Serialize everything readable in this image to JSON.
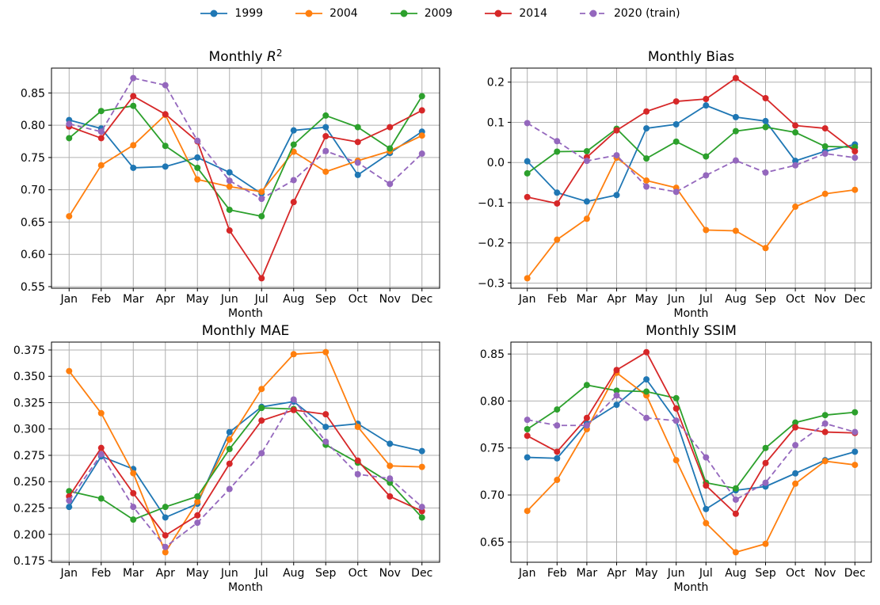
{
  "figure": {
    "background": "#ffffff"
  },
  "legend": {
    "items": [
      {
        "label": "1999",
        "color": "#1f77b4",
        "dashed": false
      },
      {
        "label": "2004",
        "color": "#ff7f0e",
        "dashed": false
      },
      {
        "label": "2009",
        "color": "#2ca02c",
        "dashed": false
      },
      {
        "label": "2014",
        "color": "#d62728",
        "dashed": false
      },
      {
        "label": "2020 (train)",
        "color": "#9467bd",
        "dashed": true
      }
    ]
  },
  "months": [
    "Jan",
    "Feb",
    "Mar",
    "Apr",
    "May",
    "Jun",
    "Jul",
    "Aug",
    "Sep",
    "Oct",
    "Nov",
    "Dec"
  ],
  "chart_data": [
    {
      "type": "line",
      "title": "Monthly R²",
      "xlabel": "Month",
      "grid": true,
      "categories": [
        "Jan",
        "Feb",
        "Mar",
        "Apr",
        "May",
        "Jun",
        "Jul",
        "Aug",
        "Sep",
        "Oct",
        "Nov",
        "Dec"
      ],
      "ylim": [
        0.5475,
        0.8885
      ],
      "yticks": [
        0.55,
        0.6,
        0.65,
        0.7,
        0.75,
        0.8,
        0.85
      ],
      "ytick_decimals": 2,
      "series": [
        {
          "name": "1999",
          "values": [
            0.808,
            0.795,
            0.734,
            0.736,
            0.75,
            0.727,
            0.694,
            0.792,
            0.797,
            0.723,
            0.757,
            0.79
          ]
        },
        {
          "name": "2004",
          "values": [
            0.659,
            0.738,
            0.769,
            0.816,
            0.716,
            0.705,
            0.697,
            0.759,
            0.728,
            0.745,
            0.76,
            0.784
          ]
        },
        {
          "name": "2009",
          "values": [
            0.78,
            0.822,
            0.83,
            0.768,
            0.734,
            0.669,
            0.659,
            0.77,
            0.815,
            0.797,
            0.764,
            0.845
          ]
        },
        {
          "name": "2014",
          "values": [
            0.798,
            0.78,
            0.845,
            0.817,
            0.775,
            0.637,
            0.563,
            0.681,
            0.783,
            0.774,
            0.797,
            0.823
          ]
        },
        {
          "name": "2020 (train)",
          "values": [
            0.802,
            0.79,
            0.873,
            0.862,
            0.776,
            0.714,
            0.686,
            0.715,
            0.76,
            0.742,
            0.709,
            0.756
          ]
        }
      ]
    },
    {
      "type": "line",
      "title": "Monthly Bias",
      "xlabel": "Month",
      "grid": true,
      "categories": [
        "Jan",
        "Feb",
        "Mar",
        "Apr",
        "May",
        "Jun",
        "Jul",
        "Aug",
        "Sep",
        "Oct",
        "Nov",
        "Dec"
      ],
      "ylim": [
        -0.3129,
        0.2349
      ],
      "yticks": [
        -0.3,
        -0.2,
        -0.1,
        0.0,
        0.1,
        0.2
      ],
      "ytick_decimals": 1,
      "series": [
        {
          "name": "1999",
          "values": [
            0.003,
            -0.075,
            -0.097,
            -0.081,
            0.085,
            0.095,
            0.142,
            0.113,
            0.103,
            0.004,
            0.028,
            0.045
          ]
        },
        {
          "name": "2004",
          "values": [
            -0.288,
            -0.192,
            -0.14,
            0.012,
            -0.045,
            -0.063,
            -0.168,
            -0.17,
            -0.213,
            -0.11,
            -0.078,
            -0.068
          ]
        },
        {
          "name": "2009",
          "values": [
            -0.027,
            0.027,
            0.028,
            0.084,
            0.01,
            0.052,
            0.015,
            0.078,
            0.088,
            0.075,
            0.04,
            0.038
          ]
        },
        {
          "name": "2014",
          "values": [
            -0.086,
            -0.102,
            0.013,
            0.08,
            0.127,
            0.152,
            0.158,
            0.21,
            0.16,
            0.092,
            0.085,
            0.028
          ]
        },
        {
          "name": "2020 (train)",
          "values": [
            0.098,
            0.053,
            0.004,
            0.018,
            -0.06,
            -0.073,
            -0.032,
            0.005,
            -0.025,
            -0.007,
            0.022,
            0.012
          ]
        }
      ]
    },
    {
      "type": "line",
      "title": "Monthly MAE",
      "xlabel": "Month",
      "grid": true,
      "categories": [
        "Jan",
        "Feb",
        "Mar",
        "Apr",
        "May",
        "Jun",
        "Jul",
        "Aug",
        "Sep",
        "Oct",
        "Nov",
        "Dec"
      ],
      "ylim": [
        0.1735,
        0.3825
      ],
      "yticks": [
        0.175,
        0.2,
        0.225,
        0.25,
        0.275,
        0.3,
        0.325,
        0.35,
        0.375
      ],
      "ytick_decimals": 3,
      "series": [
        {
          "name": "1999",
          "values": [
            0.226,
            0.274,
            0.262,
            0.216,
            0.229,
            0.297,
            0.321,
            0.326,
            0.302,
            0.305,
            0.286,
            0.279
          ]
        },
        {
          "name": "2004",
          "values": [
            0.355,
            0.315,
            0.258,
            0.183,
            0.231,
            0.29,
            0.338,
            0.371,
            0.373,
            0.302,
            0.265,
            0.264
          ]
        },
        {
          "name": "2009",
          "values": [
            0.241,
            0.234,
            0.214,
            0.226,
            0.236,
            0.281,
            0.32,
            0.319,
            0.285,
            0.268,
            0.249,
            0.216
          ]
        },
        {
          "name": "2014",
          "values": [
            0.236,
            0.282,
            0.239,
            0.199,
            0.218,
            0.267,
            0.308,
            0.318,
            0.314,
            0.27,
            0.236,
            0.222
          ]
        },
        {
          "name": "2020 (train)",
          "values": [
            0.232,
            0.276,
            0.226,
            0.188,
            0.211,
            0.243,
            0.277,
            0.328,
            0.288,
            0.257,
            0.253,
            0.226
          ]
        }
      ]
    },
    {
      "type": "line",
      "title": "Monthly SSIM",
      "xlabel": "Month",
      "grid": true,
      "categories": [
        "Jan",
        "Feb",
        "Mar",
        "Apr",
        "May",
        "Jun",
        "Jul",
        "Aug",
        "Sep",
        "Oct",
        "Nov",
        "Dec"
      ],
      "ylim": [
        0.6284,
        0.8627
      ],
      "yticks": [
        0.65,
        0.7,
        0.75,
        0.8,
        0.85
      ],
      "ytick_decimals": 2,
      "series": [
        {
          "name": "1999",
          "values": [
            0.74,
            0.739,
            0.776,
            0.796,
            0.823,
            0.779,
            0.685,
            0.705,
            0.709,
            0.723,
            0.737,
            0.746
          ]
        },
        {
          "name": "2004",
          "values": [
            0.683,
            0.716,
            0.77,
            0.83,
            0.806,
            0.737,
            0.67,
            0.639,
            0.648,
            0.712,
            0.736,
            0.732
          ]
        },
        {
          "name": "2009",
          "values": [
            0.77,
            0.791,
            0.817,
            0.811,
            0.81,
            0.803,
            0.713,
            0.707,
            0.75,
            0.777,
            0.785,
            0.788
          ]
        },
        {
          "name": "2014",
          "values": [
            0.763,
            0.746,
            0.782,
            0.833,
            0.852,
            0.792,
            0.71,
            0.68,
            0.734,
            0.772,
            0.767,
            0.766
          ]
        },
        {
          "name": "2020 (train)",
          "values": [
            0.78,
            0.774,
            0.774,
            0.806,
            0.782,
            0.779,
            0.74,
            0.695,
            0.713,
            0.753,
            0.776,
            0.767
          ]
        }
      ]
    }
  ]
}
